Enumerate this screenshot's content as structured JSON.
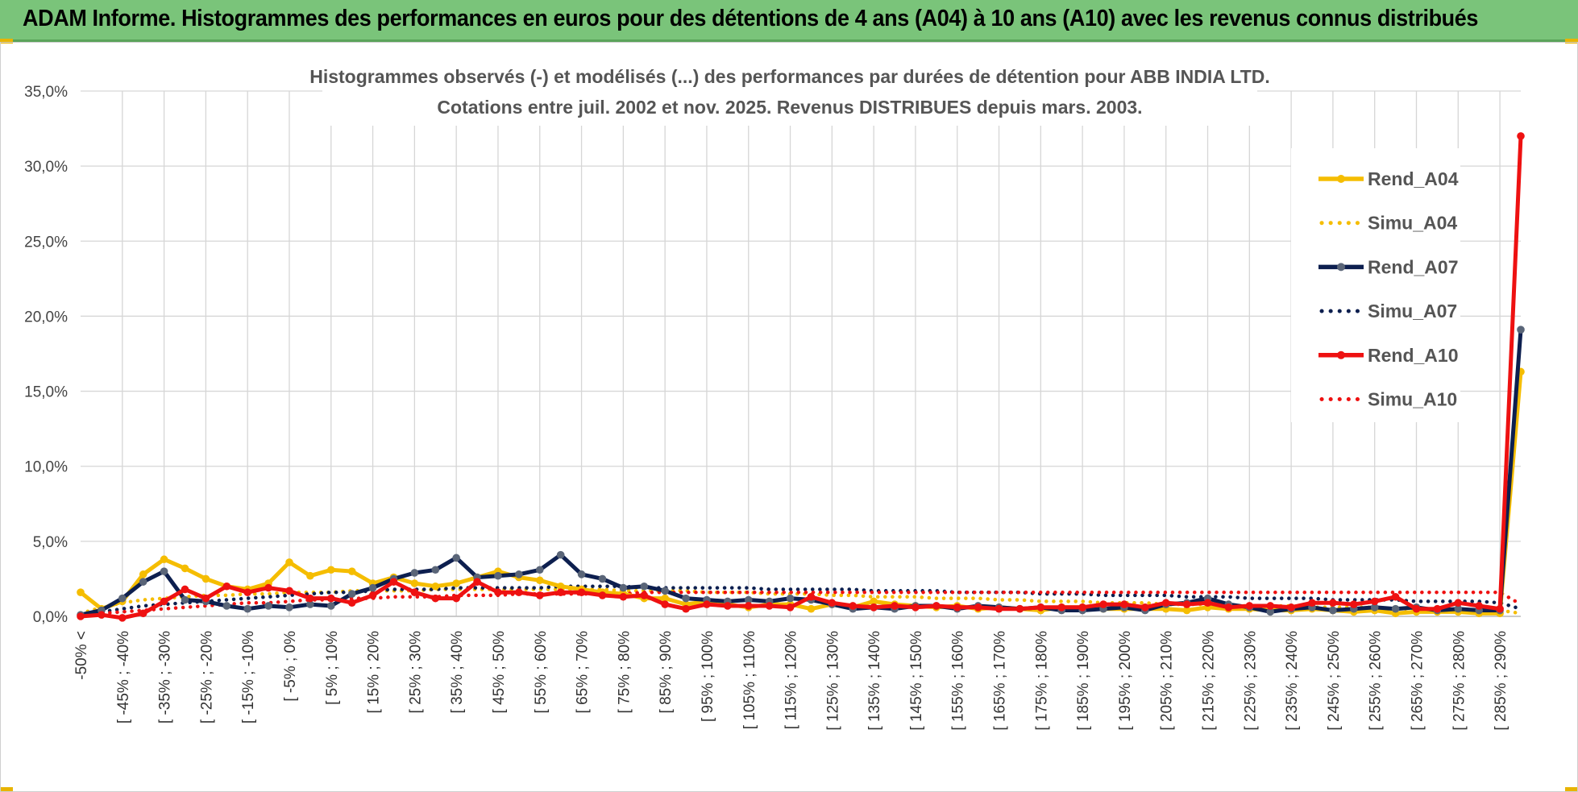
{
  "header": {
    "title": "ADAM Informe. Histogrammes des performances en euros pour des détentions de 4 ans (A04) à 10 ans (A10) avec les revenus connus distribués"
  },
  "colors": {
    "header_bg": "#7ac47a",
    "a04": "#f5bd00",
    "a07": "#0d1f4f",
    "a10": "#ee1111",
    "marker_a07": "#5a6578"
  },
  "chart_data": {
    "type": "line",
    "title_line1": "Histogrammes observés (-) et modélisés (...) des performances par durées de détention pour ABB INDIA LTD.",
    "title_line2": "Cotations entre juil. 2002 et nov. 2025. Revenus DISTRIBUES depuis mars. 2003.",
    "ylim": [
      0,
      35
    ],
    "y_ticks": [
      "0,0%",
      "5,0%",
      "10,0%",
      "15,0%",
      "20,0%",
      "25,0%",
      "30,0%",
      "35,0%"
    ],
    "x_labels": [
      "-50% <",
      "[ -45% ; -40%",
      "[ -35% ; -30%",
      "[ -25% ; -20%",
      "[ -15% ; -10%",
      "[ -5% ; 0%",
      "[ 5% ; 10%",
      "[ 15% ; 20%",
      "[ 25% ; 30%",
      "[ 35% ; 40%",
      "[ 45% ; 50%",
      "[ 55% ; 60%",
      "[ 65% ; 70%",
      "[ 75% ; 80%",
      "[ 85% ; 90%",
      "[ 95% ; 100%",
      "[ 105% ; 110%",
      "[ 115% ; 120%",
      "[ 125% ; 130%",
      "[ 135% ; 140%",
      "[ 145% ; 150%",
      "[ 155% ; 160%",
      "[ 165% ; 170%",
      "[ 175% ; 180%",
      "[ 185% ; 190%",
      "[ 195% ; 200%",
      "[ 205% ; 210%",
      "[ 215% ; 220%",
      "[ 225% ; 230%",
      "[ 235% ; 240%",
      "[ 245% ; 250%",
      "[ 255% ; 260%",
      "[ 265% ; 270%",
      "[ 275% ; 280%",
      "[ 285% ; 290%"
    ],
    "n_points": 70,
    "series": [
      {
        "name": "Rend_A04",
        "style": "solid",
        "color": "#f5bd00",
        "values": [
          1.6,
          0.5,
          1.0,
          2.8,
          3.8,
          3.2,
          2.5,
          2.0,
          1.8,
          2.2,
          3.6,
          2.7,
          3.1,
          3.0,
          2.2,
          2.6,
          2.2,
          2.0,
          2.2,
          2.6,
          3.0,
          2.6,
          2.4,
          2.0,
          1.8,
          1.6,
          1.5,
          1.2,
          1.2,
          0.8,
          1.0,
          0.8,
          0.6,
          0.8,
          0.8,
          0.5,
          0.8,
          0.6,
          1.0,
          0.8,
          0.7,
          0.6,
          0.7,
          0.5,
          0.6,
          0.5,
          0.4,
          0.6,
          0.6,
          0.5,
          0.5,
          0.5,
          0.5,
          0.4,
          0.6,
          0.5,
          0.5,
          0.4,
          0.4,
          0.5,
          0.4,
          0.3,
          0.4,
          0.2,
          0.3,
          0.3,
          0.3,
          0.2,
          0.2,
          16.3
        ]
      },
      {
        "name": "Simu_A04",
        "style": "dotted",
        "color": "#f5bd00",
        "values": [
          0.2,
          0.6,
          0.9,
          1.1,
          1.2,
          1.3,
          1.4,
          1.4,
          1.5,
          1.5,
          1.6,
          1.6,
          1.6,
          1.7,
          1.7,
          1.7,
          1.7,
          1.8,
          1.8,
          1.8,
          1.8,
          1.8,
          1.8,
          1.8,
          1.8,
          1.8,
          1.7,
          1.7,
          1.7,
          1.7,
          1.6,
          1.6,
          1.6,
          1.5,
          1.5,
          1.5,
          1.4,
          1.4,
          1.3,
          1.3,
          1.3,
          1.2,
          1.2,
          1.2,
          1.1,
          1.1,
          1.0,
          1.0,
          1.0,
          0.9,
          0.9,
          0.9,
          0.8,
          0.8,
          0.8,
          0.7,
          0.7,
          0.7,
          0.7,
          0.6,
          0.6,
          0.6,
          0.6,
          0.5,
          0.5,
          0.5,
          0.5,
          0.4,
          0.4,
          0.2
        ]
      },
      {
        "name": "Rend_A07",
        "style": "solid",
        "color": "#0d1f4f",
        "values": [
          0.1,
          0.4,
          1.2,
          2.3,
          3.0,
          1.1,
          1.0,
          0.7,
          0.5,
          0.7,
          0.6,
          0.8,
          0.7,
          1.5,
          1.9,
          2.5,
          2.9,
          3.1,
          3.9,
          2.6,
          2.7,
          2.8,
          3.1,
          4.1,
          2.8,
          2.5,
          1.9,
          2.0,
          1.7,
          1.2,
          1.1,
          1.0,
          1.1,
          1.0,
          1.2,
          1.1,
          0.8,
          0.5,
          0.6,
          0.5,
          0.7,
          0.7,
          0.5,
          0.7,
          0.6,
          0.5,
          0.6,
          0.4,
          0.4,
          0.5,
          0.6,
          0.4,
          0.8,
          0.9,
          1.2,
          0.8,
          0.6,
          0.3,
          0.5,
          0.6,
          0.4,
          0.5,
          0.6,
          0.5,
          0.6,
          0.4,
          0.5,
          0.4,
          0.4,
          19.1
        ]
      },
      {
        "name": "Simu_A07",
        "style": "dotted",
        "color": "#0d1f4f",
        "values": [
          0.1,
          0.3,
          0.5,
          0.7,
          0.8,
          0.9,
          1.0,
          1.1,
          1.2,
          1.3,
          1.4,
          1.5,
          1.6,
          1.6,
          1.7,
          1.8,
          1.8,
          1.8,
          1.9,
          1.9,
          1.9,
          1.9,
          1.9,
          2.0,
          2.0,
          2.0,
          2.0,
          1.9,
          1.9,
          1.9,
          1.9,
          1.9,
          1.9,
          1.8,
          1.8,
          1.8,
          1.8,
          1.8,
          1.7,
          1.7,
          1.7,
          1.7,
          1.6,
          1.6,
          1.6,
          1.6,
          1.5,
          1.5,
          1.5,
          1.4,
          1.4,
          1.4,
          1.4,
          1.3,
          1.3,
          1.3,
          1.2,
          1.2,
          1.2,
          1.2,
          1.1,
          1.1,
          1.1,
          1.1,
          1.0,
          1.0,
          1.0,
          1.0,
          0.9,
          0.5
        ]
      },
      {
        "name": "Rend_A10",
        "style": "solid",
        "color": "#ee1111",
        "values": [
          0.0,
          0.1,
          -0.1,
          0.2,
          1.0,
          1.8,
          1.2,
          2.0,
          1.6,
          1.9,
          1.7,
          1.2,
          1.2,
          0.9,
          1.4,
          2.3,
          1.6,
          1.2,
          1.2,
          2.3,
          1.6,
          1.6,
          1.4,
          1.6,
          1.6,
          1.4,
          1.3,
          1.4,
          0.8,
          0.5,
          0.8,
          0.7,
          0.7,
          0.7,
          0.6,
          1.3,
          0.9,
          0.7,
          0.6,
          0.7,
          0.6,
          0.7,
          0.6,
          0.6,
          0.5,
          0.5,
          0.6,
          0.6,
          0.6,
          0.8,
          0.8,
          0.6,
          0.9,
          0.8,
          0.9,
          0.6,
          0.7,
          0.7,
          0.6,
          0.9,
          0.9,
          0.8,
          1.0,
          1.3,
          0.5,
          0.5,
          0.9,
          0.7,
          0.5,
          32.0
        ]
      },
      {
        "name": "Simu_A10",
        "style": "dotted",
        "color": "#ee1111",
        "values": [
          0.1,
          0.2,
          0.3,
          0.4,
          0.5,
          0.6,
          0.7,
          0.8,
          0.9,
          0.9,
          1.0,
          1.1,
          1.1,
          1.2,
          1.2,
          1.3,
          1.3,
          1.3,
          1.4,
          1.4,
          1.4,
          1.5,
          1.5,
          1.5,
          1.5,
          1.5,
          1.5,
          1.6,
          1.6,
          1.6,
          1.6,
          1.6,
          1.6,
          1.6,
          1.6,
          1.6,
          1.6,
          1.6,
          1.6,
          1.6,
          1.6,
          1.6,
          1.6,
          1.6,
          1.6,
          1.6,
          1.6,
          1.6,
          1.6,
          1.6,
          1.6,
          1.6,
          1.6,
          1.6,
          1.6,
          1.6,
          1.6,
          1.6,
          1.6,
          1.6,
          1.6,
          1.6,
          1.6,
          1.6,
          1.6,
          1.6,
          1.6,
          1.6,
          1.6,
          0.8
        ]
      }
    ],
    "legend": [
      "Rend_A04",
      "Simu_A04",
      "Rend_A07",
      "Simu_A07",
      "Rend_A10",
      "Simu_A10"
    ],
    "legend_position": "top-right"
  }
}
